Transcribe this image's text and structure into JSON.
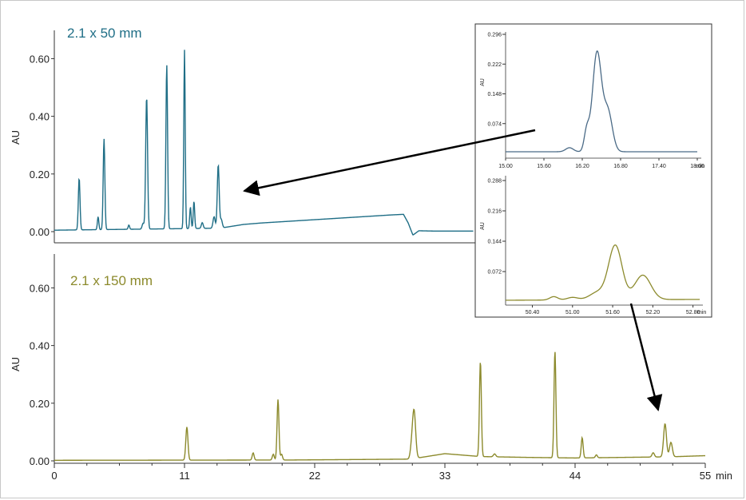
{
  "colors": {
    "top_trace": "#1f6e86",
    "bottom_trace": "#8c8a2c",
    "inset_top_trace": "#4a6a86",
    "inset_bottom_trace": "#8c8a2c",
    "axis": "#333333",
    "arrow": "#000000"
  },
  "chart_data": [
    {
      "type": "line",
      "id": "top",
      "title": "2.1 x 50 mm",
      "ylabel": "AU",
      "xlabel": "",
      "xlim": [
        0,
        55
      ],
      "ylim": [
        0,
        0.64
      ],
      "yticks": [
        "0.00",
        "0.20",
        "0.40",
        "0.60"
      ],
      "ytick_values": [
        0,
        0.2,
        0.4,
        0.6
      ],
      "baseline": [
        [
          0,
          0.005
        ],
        [
          2,
          0.006
        ],
        [
          14,
          0.012
        ],
        [
          16,
          0.025
        ],
        [
          17.5,
          0.03
        ],
        [
          28.5,
          0.058
        ],
        [
          29.5,
          0.06
        ],
        [
          29.9,
          0.03
        ],
        [
          30.3,
          -0.012
        ],
        [
          30.8,
          0.003
        ],
        [
          32,
          0.002
        ],
        [
          35.4,
          0.002
        ]
      ],
      "peaks": [
        {
          "t": 2.1,
          "h": 0.18,
          "w": 0.07
        },
        {
          "t": 3.7,
          "h": 0.045,
          "w": 0.06
        },
        {
          "t": 4.2,
          "h": 0.315,
          "w": 0.07
        },
        {
          "t": 6.3,
          "h": 0.015,
          "w": 0.06
        },
        {
          "t": 7.5,
          "h": 0.02,
          "w": 0.08
        },
        {
          "t": 7.8,
          "h": 0.46,
          "w": 0.08
        },
        {
          "t": 9.5,
          "h": 0.57,
          "w": 0.07
        },
        {
          "t": 11.0,
          "h": 0.62,
          "w": 0.06
        },
        {
          "t": 11.5,
          "h": 0.075,
          "w": 0.06
        },
        {
          "t": 11.8,
          "h": 0.095,
          "w": 0.06
        },
        {
          "t": 12.5,
          "h": 0.02,
          "w": 0.08
        },
        {
          "t": 13.5,
          "h": 0.04,
          "w": 0.09
        },
        {
          "t": 13.85,
          "h": 0.22,
          "w": 0.08
        },
        {
          "t": 14.1,
          "h": 0.03,
          "w": 0.09
        }
      ]
    },
    {
      "type": "line",
      "id": "bottom",
      "title": "2.1 x 150 mm",
      "ylabel": "AU",
      "xlabel": "min",
      "xlim": [
        0,
        55
      ],
      "ylim": [
        0,
        0.64
      ],
      "xticks": [
        "0",
        "11",
        "22",
        "33",
        "44",
        "55"
      ],
      "xtick_values": [
        0,
        11,
        22,
        33,
        44,
        55
      ],
      "yticks": [
        "0.00",
        "0.20",
        "0.40",
        "0.60"
      ],
      "ytick_values": [
        0,
        0.2,
        0.4,
        0.6
      ],
      "baseline": [
        [
          0,
          0.002
        ],
        [
          20,
          0.003
        ],
        [
          30,
          0.006
        ],
        [
          31,
          0.012
        ],
        [
          33,
          0.025
        ],
        [
          36,
          0.015
        ],
        [
          40,
          0.012
        ],
        [
          44,
          0.01
        ],
        [
          52,
          0.014
        ],
        [
          55,
          0.018
        ]
      ],
      "peaks": [
        {
          "t": 11.2,
          "h": 0.115,
          "w": 0.09
        },
        {
          "t": 16.8,
          "h": 0.025,
          "w": 0.08
        },
        {
          "t": 18.5,
          "h": 0.02,
          "w": 0.08
        },
        {
          "t": 18.9,
          "h": 0.21,
          "w": 0.08
        },
        {
          "t": 19.2,
          "h": 0.02,
          "w": 0.08
        },
        {
          "t": 30.2,
          "h": 0.04,
          "w": 0.12
        },
        {
          "t": 30.4,
          "h": 0.16,
          "w": 0.13
        },
        {
          "t": 36.0,
          "h": 0.33,
          "w": 0.08
        },
        {
          "t": 37.2,
          "h": 0.01,
          "w": 0.1
        },
        {
          "t": 42.3,
          "h": 0.37,
          "w": 0.08
        },
        {
          "t": 44.6,
          "h": 0.07,
          "w": 0.08
        },
        {
          "t": 45.8,
          "h": 0.01,
          "w": 0.08
        },
        {
          "t": 50.6,
          "h": 0.015,
          "w": 0.1
        },
        {
          "t": 51.6,
          "h": 0.115,
          "w": 0.12
        },
        {
          "t": 52.1,
          "h": 0.05,
          "w": 0.12
        }
      ]
    },
    {
      "type": "line",
      "id": "inset_top",
      "ylabel": "AU",
      "xlabel": "min",
      "xlim": [
        15.0,
        18.0
      ],
      "ylim": [
        0,
        0.296
      ],
      "xticks": [
        "15.00",
        "15.60",
        "16.20",
        "16.80",
        "17.40",
        "18.00"
      ],
      "xtick_values": [
        15.0,
        15.6,
        16.2,
        16.8,
        17.4,
        18.0
      ],
      "yticks": [
        "0.074",
        "0.148",
        "0.222",
        "0.296"
      ],
      "ytick_values": [
        0.074,
        0.148,
        0.222,
        0.296
      ],
      "baseline": [
        [
          15.0,
          0.004
        ],
        [
          18.0,
          0.004
        ]
      ],
      "peaks": [
        {
          "t": 16.0,
          "h": 0.01,
          "w": 0.06
        },
        {
          "t": 16.27,
          "h": 0.05,
          "w": 0.04
        },
        {
          "t": 16.43,
          "h": 0.245,
          "w": 0.07
        },
        {
          "t": 16.6,
          "h": 0.1,
          "w": 0.07
        }
      ]
    },
    {
      "type": "line",
      "id": "inset_bottom",
      "ylabel": "AU",
      "xlabel": "min",
      "xlim": [
        50.0,
        52.9
      ],
      "ylim": [
        0,
        0.288
      ],
      "xticks": [
        "50.40",
        "51.00",
        "51.60",
        "52.20",
        "52.80"
      ],
      "xtick_values": [
        50.4,
        51.0,
        51.6,
        52.2,
        52.8
      ],
      "yticks": [
        "0.072",
        "0.144",
        "0.216",
        "0.288"
      ],
      "ytick_values": [
        0.072,
        0.144,
        0.216,
        0.288
      ],
      "baseline": [
        [
          50.0,
          0.004
        ],
        [
          52.9,
          0.006
        ]
      ],
      "peaks": [
        {
          "t": 50.72,
          "h": 0.008,
          "w": 0.06
        },
        {
          "t": 51.0,
          "h": 0.006,
          "w": 0.08
        },
        {
          "t": 51.38,
          "h": 0.018,
          "w": 0.12
        },
        {
          "t": 51.64,
          "h": 0.128,
          "w": 0.1
        },
        {
          "t": 52.05,
          "h": 0.058,
          "w": 0.12
        }
      ]
    }
  ]
}
